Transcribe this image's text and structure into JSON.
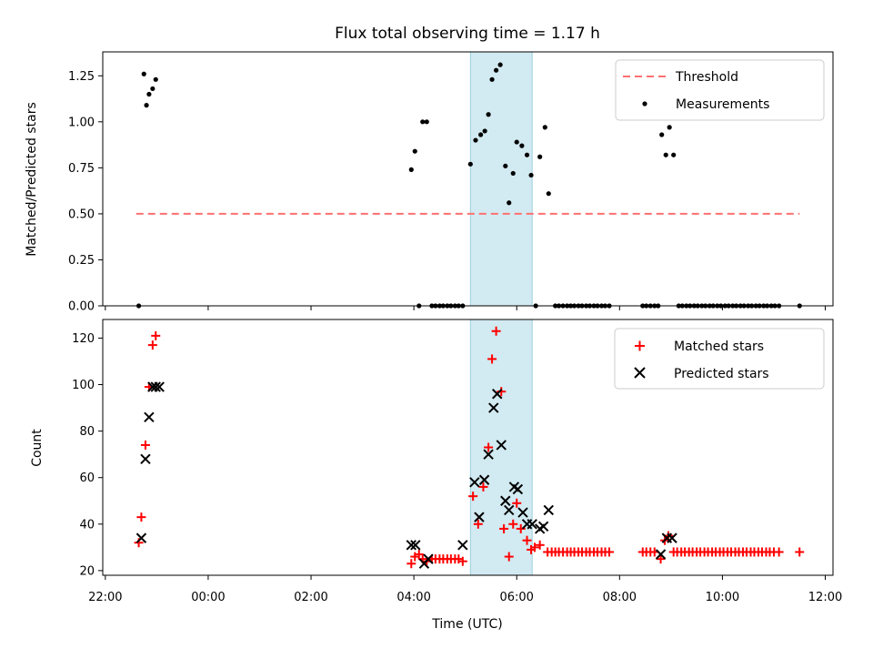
{
  "chart_data": {
    "type": "scatter",
    "title": "Flux total observing time = 1.17 h",
    "xlabel": "Time (UTC)",
    "x_ticks": [
      "22:00",
      "00:00",
      "02:00",
      "04:00",
      "06:00",
      "08:00",
      "10:00",
      "12:00"
    ],
    "x_tick_hours": [
      -2,
      0,
      2,
      4,
      6,
      8,
      10,
      12
    ],
    "xlim_hours": [
      -2.05,
      12.15
    ],
    "highlight_span_hours": [
      5.1,
      6.3
    ],
    "highlight_color": "#add8e6",
    "panels": [
      {
        "ylabel": "Matched/Predicted stars",
        "ylim": [
          0,
          1.38
        ],
        "y_ticks": [
          "0.00",
          "0.25",
          "0.50",
          "0.75",
          "1.00",
          "1.25"
        ],
        "y_tick_values": [
          0,
          0.25,
          0.5,
          0.75,
          1.0,
          1.25
        ],
        "legend": {
          "placement": "top-right",
          "entries": [
            "Threshold",
            "Measurements"
          ]
        },
        "threshold": {
          "name": "Threshold",
          "value": 0.5,
          "x_range_hours": [
            -1.4,
            11.5
          ],
          "color": "#ff7070",
          "style": "dashed"
        },
        "series": [
          {
            "name": "Measurements",
            "marker": "dot",
            "color": "#000000",
            "points": [
              [
                -1.35,
                0.0
              ],
              [
                -1.25,
                1.26
              ],
              [
                -1.2,
                1.09
              ],
              [
                -1.15,
                1.15
              ],
              [
                -1.08,
                1.18
              ],
              [
                -1.02,
                1.23
              ],
              [
                3.95,
                0.74
              ],
              [
                4.02,
                0.84
              ],
              [
                4.1,
                0.0
              ],
              [
                4.17,
                1.0
              ],
              [
                4.25,
                1.0
              ],
              [
                4.35,
                0.0
              ],
              [
                4.42,
                0.0
              ],
              [
                4.5,
                0.0
              ],
              [
                4.57,
                0.0
              ],
              [
                4.65,
                0.0
              ],
              [
                4.72,
                0.0
              ],
              [
                4.8,
                0.0
              ],
              [
                4.87,
                0.0
              ],
              [
                4.95,
                0.0
              ],
              [
                5.1,
                0.77
              ],
              [
                5.2,
                0.9
              ],
              [
                5.3,
                0.93
              ],
              [
                5.38,
                0.95
              ],
              [
                5.45,
                1.04
              ],
              [
                5.52,
                1.23
              ],
              [
                5.6,
                1.28
              ],
              [
                5.68,
                1.31
              ],
              [
                5.78,
                0.76
              ],
              [
                5.85,
                0.56
              ],
              [
                5.93,
                0.72
              ],
              [
                6.0,
                0.89
              ],
              [
                6.1,
                0.87
              ],
              [
                6.2,
                0.82
              ],
              [
                6.28,
                0.71
              ],
              [
                6.37,
                0.0
              ],
              [
                6.45,
                0.81
              ],
              [
                6.55,
                0.97
              ],
              [
                6.62,
                0.61
              ],
              [
                6.75,
                0.0
              ],
              [
                6.82,
                0.0
              ],
              [
                6.9,
                0.0
              ],
              [
                6.98,
                0.0
              ],
              [
                7.05,
                0.0
              ],
              [
                7.12,
                0.0
              ],
              [
                7.2,
                0.0
              ],
              [
                7.27,
                0.0
              ],
              [
                7.35,
                0.0
              ],
              [
                7.42,
                0.0
              ],
              [
                7.5,
                0.0
              ],
              [
                7.57,
                0.0
              ],
              [
                7.65,
                0.0
              ],
              [
                7.72,
                0.0
              ],
              [
                7.8,
                0.0
              ],
              [
                8.45,
                0.0
              ],
              [
                8.52,
                0.0
              ],
              [
                8.6,
                0.0
              ],
              [
                8.68,
                0.0
              ],
              [
                8.75,
                0.0
              ],
              [
                8.82,
                0.93
              ],
              [
                8.9,
                0.82
              ],
              [
                8.97,
                0.97
              ],
              [
                9.05,
                0.82
              ],
              [
                9.15,
                0.0
              ],
              [
                9.22,
                0.0
              ],
              [
                9.3,
                0.0
              ],
              [
                9.37,
                0.0
              ],
              [
                9.45,
                0.0
              ],
              [
                9.52,
                0.0
              ],
              [
                9.6,
                0.0
              ],
              [
                9.67,
                0.0
              ],
              [
                9.75,
                0.0
              ],
              [
                9.82,
                0.0
              ],
              [
                9.9,
                0.0
              ],
              [
                9.97,
                0.0
              ],
              [
                10.05,
                0.0
              ],
              [
                10.12,
                0.0
              ],
              [
                10.2,
                0.0
              ],
              [
                10.27,
                0.0
              ],
              [
                10.35,
                0.0
              ],
              [
                10.42,
                0.0
              ],
              [
                10.5,
                0.0
              ],
              [
                10.57,
                0.0
              ],
              [
                10.65,
                0.0
              ],
              [
                10.72,
                0.0
              ],
              [
                10.8,
                0.0
              ],
              [
                10.87,
                0.0
              ],
              [
                10.95,
                0.0
              ],
              [
                11.02,
                0.0
              ],
              [
                11.1,
                0.0
              ],
              [
                11.5,
                0.0
              ]
            ]
          }
        ]
      },
      {
        "ylabel": "Count",
        "ylim": [
          18,
          128
        ],
        "y_ticks": [
          "20",
          "40",
          "60",
          "80",
          "100",
          "120"
        ],
        "y_tick_values": [
          20,
          40,
          60,
          80,
          100,
          120
        ],
        "legend": {
          "placement": "top-right",
          "entries": [
            "Matched stars",
            "Predicted stars"
          ]
        },
        "series": [
          {
            "name": "Matched stars",
            "marker": "plus",
            "color": "#ff0000",
            "points": [
              [
                -1.35,
                32
              ],
              [
                -1.3,
                43
              ],
              [
                -1.22,
                74
              ],
              [
                -1.15,
                99
              ],
              [
                -1.08,
                117
              ],
              [
                -1.02,
                121
              ],
              [
                3.95,
                23
              ],
              [
                4.02,
                26
              ],
              [
                4.1,
                27
              ],
              [
                4.17,
                25
              ],
              [
                4.25,
                24
              ],
              [
                4.35,
                25
              ],
              [
                4.42,
                25
              ],
              [
                4.5,
                25
              ],
              [
                4.57,
                25
              ],
              [
                4.65,
                25
              ],
              [
                4.72,
                25
              ],
              [
                4.8,
                25
              ],
              [
                4.87,
                25
              ],
              [
                4.95,
                24
              ],
              [
                5.15,
                52
              ],
              [
                5.25,
                40
              ],
              [
                5.35,
                56
              ],
              [
                5.45,
                73
              ],
              [
                5.52,
                111
              ],
              [
                5.6,
                123
              ],
              [
                5.7,
                97
              ],
              [
                5.75,
                38
              ],
              [
                5.85,
                26
              ],
              [
                5.93,
                40
              ],
              [
                6.0,
                49
              ],
              [
                6.08,
                38
              ],
              [
                6.2,
                33
              ],
              [
                6.28,
                29
              ],
              [
                6.35,
                30
              ],
              [
                6.45,
                31
              ],
              [
                6.6,
                28
              ],
              [
                6.68,
                28
              ],
              [
                6.75,
                28
              ],
              [
                6.82,
                28
              ],
              [
                6.9,
                28
              ],
              [
                6.98,
                28
              ],
              [
                7.05,
                28
              ],
              [
                7.12,
                28
              ],
              [
                7.2,
                28
              ],
              [
                7.27,
                28
              ],
              [
                7.35,
                28
              ],
              [
                7.42,
                28
              ],
              [
                7.5,
                28
              ],
              [
                7.57,
                28
              ],
              [
                7.65,
                28
              ],
              [
                7.72,
                28
              ],
              [
                7.8,
                28
              ],
              [
                8.45,
                28
              ],
              [
                8.52,
                28
              ],
              [
                8.6,
                28
              ],
              [
                8.68,
                28
              ],
              [
                8.8,
                25
              ],
              [
                8.88,
                33
              ],
              [
                8.95,
                35
              ],
              [
                9.05,
                28
              ],
              [
                9.12,
                28
              ],
              [
                9.2,
                28
              ],
              [
                9.27,
                28
              ],
              [
                9.35,
                28
              ],
              [
                9.42,
                28
              ],
              [
                9.5,
                28
              ],
              [
                9.57,
                28
              ],
              [
                9.65,
                28
              ],
              [
                9.72,
                28
              ],
              [
                9.8,
                28
              ],
              [
                9.87,
                28
              ],
              [
                9.95,
                28
              ],
              [
                10.02,
                28
              ],
              [
                10.1,
                28
              ],
              [
                10.17,
                28
              ],
              [
                10.25,
                28
              ],
              [
                10.32,
                28
              ],
              [
                10.4,
                28
              ],
              [
                10.47,
                28
              ],
              [
                10.55,
                28
              ],
              [
                10.62,
                28
              ],
              [
                10.7,
                28
              ],
              [
                10.77,
                28
              ],
              [
                10.85,
                28
              ],
              [
                10.92,
                28
              ],
              [
                11.0,
                28
              ],
              [
                11.1,
                28
              ],
              [
                11.5,
                28
              ]
            ]
          },
          {
            "name": "Predicted stars",
            "marker": "x",
            "color": "#000000",
            "points": [
              [
                -1.3,
                34
              ],
              [
                -1.22,
                68
              ],
              [
                -1.15,
                86
              ],
              [
                -1.08,
                99
              ],
              [
                -1.02,
                99
              ],
              [
                -0.95,
                99
              ],
              [
                3.95,
                31
              ],
              [
                4.03,
                31
              ],
              [
                4.2,
                23
              ],
              [
                4.28,
                25
              ],
              [
                4.95,
                31
              ],
              [
                5.18,
                58
              ],
              [
                5.27,
                43
              ],
              [
                5.37,
                59
              ],
              [
                5.45,
                70
              ],
              [
                5.55,
                90
              ],
              [
                5.62,
                96
              ],
              [
                5.7,
                74
              ],
              [
                5.78,
                50
              ],
              [
                5.85,
                46
              ],
              [
                5.95,
                56
              ],
              [
                6.02,
                55
              ],
              [
                6.12,
                45
              ],
              [
                6.2,
                40
              ],
              [
                6.3,
                40
              ],
              [
                6.45,
                38
              ],
              [
                6.52,
                39
              ],
              [
                6.62,
                46
              ],
              [
                8.8,
                27
              ],
              [
                8.92,
                34
              ],
              [
                9.02,
                34
              ]
            ]
          }
        ]
      }
    ]
  }
}
